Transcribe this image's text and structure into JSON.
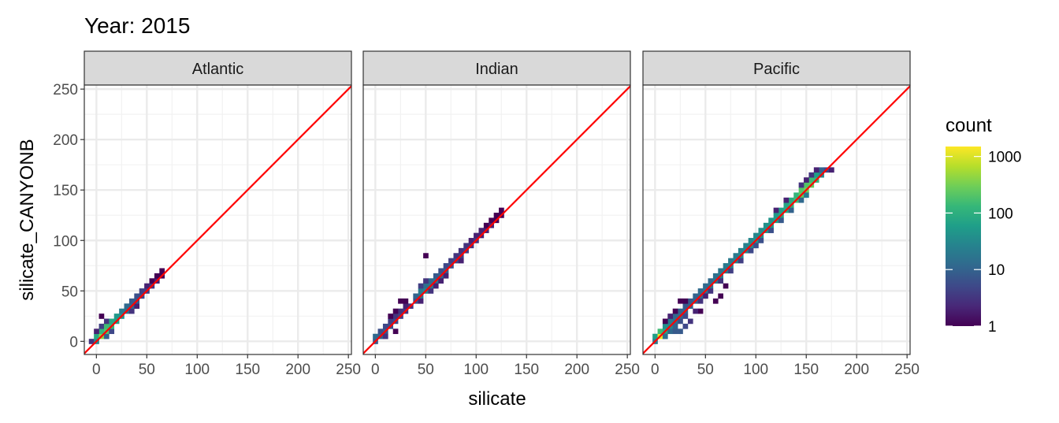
{
  "chart_data": {
    "type": "heatmap",
    "title": "Year: 2015",
    "xlabel": "silicate",
    "ylabel": "silicate_CANYONB",
    "xlim": [
      -12,
      253
    ],
    "ylim": [
      -13,
      254
    ],
    "x_ticks": [
      0,
      50,
      100,
      150,
      200,
      250
    ],
    "y_ticks": [
      0,
      50,
      100,
      150,
      200,
      250
    ],
    "grid": true,
    "bin_width": 5,
    "reference_line": {
      "slope": 1,
      "intercept": 0,
      "color": "#ff0000"
    },
    "legend": {
      "title": "count",
      "placement": "right",
      "scale": "log10",
      "palette": "viridis",
      "range": [
        1,
        1500
      ],
      "ticks": [
        1,
        10,
        100,
        1000
      ],
      "tick_labels": [
        "1",
        "10",
        "100",
        "1000"
      ]
    },
    "facets": [
      {
        "name": "Atlantic",
        "bins": [
          [
            -5,
            0,
            3
          ],
          [
            0,
            0,
            30
          ],
          [
            0,
            5,
            80
          ],
          [
            5,
            5,
            400
          ],
          [
            5,
            10,
            120
          ],
          [
            0,
            10,
            2
          ],
          [
            5,
            15,
            4
          ],
          [
            10,
            5,
            10
          ],
          [
            10,
            10,
            200
          ],
          [
            10,
            15,
            150
          ],
          [
            15,
            10,
            5
          ],
          [
            15,
            15,
            120
          ],
          [
            10,
            20,
            3
          ],
          [
            15,
            20,
            80
          ],
          [
            20,
            20,
            60
          ],
          [
            20,
            25,
            50
          ],
          [
            25,
            25,
            40
          ],
          [
            25,
            30,
            20
          ],
          [
            30,
            30,
            15
          ],
          [
            30,
            35,
            12
          ],
          [
            35,
            30,
            3
          ],
          [
            35,
            35,
            10
          ],
          [
            35,
            40,
            8
          ],
          [
            40,
            35,
            2
          ],
          [
            40,
            40,
            8
          ],
          [
            40,
            45,
            6
          ],
          [
            45,
            45,
            5
          ],
          [
            45,
            50,
            4
          ],
          [
            50,
            50,
            4
          ],
          [
            50,
            55,
            2
          ],
          [
            55,
            55,
            3
          ],
          [
            55,
            60,
            1
          ],
          [
            60,
            60,
            2
          ],
          [
            60,
            65,
            1
          ],
          [
            65,
            65,
            1
          ],
          [
            65,
            70,
            1
          ],
          [
            5,
            25,
            1
          ]
        ]
      },
      {
        "name": "Indian",
        "bins": [
          [
            0,
            0,
            8
          ],
          [
            0,
            5,
            12
          ],
          [
            5,
            5,
            10
          ],
          [
            5,
            10,
            6
          ],
          [
            10,
            10,
            8
          ],
          [
            10,
            15,
            5
          ],
          [
            15,
            15,
            6
          ],
          [
            15,
            20,
            4
          ],
          [
            20,
            20,
            5
          ],
          [
            20,
            25,
            3
          ],
          [
            25,
            25,
            4
          ],
          [
            25,
            30,
            3
          ],
          [
            30,
            30,
            3
          ],
          [
            30,
            35,
            2
          ],
          [
            35,
            35,
            3
          ],
          [
            20,
            30,
            1
          ],
          [
            15,
            25,
            1
          ],
          [
            25,
            40,
            1
          ],
          [
            30,
            40,
            1
          ],
          [
            40,
            40,
            6
          ],
          [
            40,
            45,
            10
          ],
          [
            45,
            45,
            15
          ],
          [
            45,
            50,
            20
          ],
          [
            50,
            50,
            25
          ],
          [
            50,
            55,
            15
          ],
          [
            55,
            55,
            18
          ],
          [
            55,
            60,
            12
          ],
          [
            60,
            60,
            15
          ],
          [
            60,
            65,
            8
          ],
          [
            65,
            65,
            10
          ],
          [
            65,
            70,
            6
          ],
          [
            70,
            70,
            8
          ],
          [
            70,
            75,
            5
          ],
          [
            75,
            75,
            6
          ],
          [
            75,
            80,
            4
          ],
          [
            80,
            80,
            5
          ],
          [
            80,
            85,
            3
          ],
          [
            85,
            85,
            4
          ],
          [
            85,
            90,
            3
          ],
          [
            90,
            90,
            4
          ],
          [
            90,
            95,
            3
          ],
          [
            95,
            95,
            3
          ],
          [
            95,
            100,
            2
          ],
          [
            100,
            100,
            3
          ],
          [
            100,
            105,
            2
          ],
          [
            105,
            105,
            2
          ],
          [
            105,
            110,
            2
          ],
          [
            110,
            110,
            2
          ],
          [
            110,
            115,
            1
          ],
          [
            115,
            115,
            2
          ],
          [
            115,
            120,
            1
          ],
          [
            120,
            120,
            1
          ],
          [
            120,
            125,
            1
          ],
          [
            125,
            125,
            1
          ],
          [
            125,
            130,
            1
          ],
          [
            50,
            60,
            3
          ],
          [
            45,
            55,
            4
          ],
          [
            55,
            50,
            3
          ],
          [
            60,
            55,
            2
          ],
          [
            65,
            60,
            2
          ],
          [
            50,
            85,
            1
          ],
          [
            45,
            40,
            2
          ],
          [
            70,
            65,
            2
          ],
          [
            85,
            80,
            2
          ],
          [
            20,
            10,
            1
          ],
          [
            10,
            5,
            3
          ]
        ]
      },
      {
        "name": "Pacific",
        "bins": [
          [
            0,
            0,
            20
          ],
          [
            0,
            5,
            60
          ],
          [
            5,
            5,
            1200
          ],
          [
            5,
            10,
            150
          ],
          [
            10,
            10,
            80
          ],
          [
            10,
            15,
            40
          ],
          [
            15,
            15,
            30
          ],
          [
            15,
            20,
            20
          ],
          [
            20,
            20,
            15
          ],
          [
            20,
            25,
            12
          ],
          [
            25,
            25,
            12
          ],
          [
            25,
            30,
            10
          ],
          [
            30,
            30,
            10
          ],
          [
            30,
            35,
            8
          ],
          [
            35,
            35,
            10
          ],
          [
            35,
            40,
            8
          ],
          [
            40,
            40,
            10
          ],
          [
            40,
            45,
            10
          ],
          [
            45,
            45,
            12
          ],
          [
            45,
            50,
            12
          ],
          [
            50,
            50,
            15
          ],
          [
            50,
            55,
            12
          ],
          [
            55,
            55,
            15
          ],
          [
            55,
            60,
            12
          ],
          [
            60,
            60,
            18
          ],
          [
            60,
            65,
            15
          ],
          [
            65,
            65,
            20
          ],
          [
            65,
            70,
            18
          ],
          [
            70,
            70,
            20
          ],
          [
            70,
            75,
            20
          ],
          [
            75,
            75,
            25
          ],
          [
            75,
            80,
            20
          ],
          [
            80,
            80,
            25
          ],
          [
            80,
            85,
            20
          ],
          [
            85,
            85,
            30
          ],
          [
            85,
            90,
            25
          ],
          [
            90,
            90,
            30
          ],
          [
            90,
            95,
            25
          ],
          [
            95,
            95,
            35
          ],
          [
            95,
            100,
            30
          ],
          [
            100,
            100,
            40
          ],
          [
            100,
            105,
            30
          ],
          [
            105,
            105,
            40
          ],
          [
            105,
            110,
            35
          ],
          [
            110,
            110,
            45
          ],
          [
            110,
            115,
            40
          ],
          [
            115,
            115,
            50
          ],
          [
            115,
            120,
            45
          ],
          [
            120,
            120,
            60
          ],
          [
            120,
            125,
            50
          ],
          [
            125,
            125,
            70
          ],
          [
            125,
            130,
            60
          ],
          [
            130,
            130,
            80
          ],
          [
            130,
            135,
            70
          ],
          [
            135,
            135,
            100
          ],
          [
            135,
            140,
            90
          ],
          [
            140,
            140,
            150
          ],
          [
            140,
            145,
            120
          ],
          [
            145,
            145,
            250
          ],
          [
            145,
            150,
            200
          ],
          [
            150,
            150,
            300
          ],
          [
            150,
            155,
            200
          ],
          [
            155,
            155,
            250
          ],
          [
            155,
            160,
            150
          ],
          [
            160,
            160,
            120
          ],
          [
            160,
            165,
            60
          ],
          [
            165,
            165,
            30
          ],
          [
            165,
            170,
            10
          ],
          [
            170,
            170,
            5
          ],
          [
            175,
            170,
            2
          ],
          [
            10,
            5,
            15
          ],
          [
            15,
            10,
            12
          ],
          [
            20,
            15,
            10
          ],
          [
            25,
            20,
            6
          ],
          [
            30,
            25,
            5
          ],
          [
            20,
            10,
            8
          ],
          [
            25,
            10,
            8
          ],
          [
            30,
            15,
            5
          ],
          [
            15,
            25,
            2
          ],
          [
            10,
            20,
            1
          ],
          [
            20,
            30,
            1
          ],
          [
            25,
            40,
            1
          ],
          [
            30,
            40,
            1
          ],
          [
            45,
            40,
            3
          ],
          [
            50,
            45,
            2
          ],
          [
            55,
            50,
            3
          ],
          [
            65,
            60,
            3
          ],
          [
            75,
            70,
            4
          ],
          [
            85,
            80,
            4
          ],
          [
            95,
            90,
            5
          ],
          [
            105,
            100,
            6
          ],
          [
            115,
            110,
            6
          ],
          [
            125,
            120,
            8
          ],
          [
            135,
            130,
            10
          ],
          [
            145,
            140,
            12
          ],
          [
            150,
            145,
            20
          ],
          [
            60,
            40,
            1
          ],
          [
            65,
            45,
            1
          ],
          [
            45,
            30,
            1
          ],
          [
            70,
            55,
            1
          ],
          [
            120,
            130,
            2
          ],
          [
            130,
            140,
            2
          ],
          [
            145,
            155,
            3
          ],
          [
            150,
            160,
            2
          ],
          [
            155,
            165,
            3
          ],
          [
            160,
            170,
            2
          ],
          [
            35,
            20,
            3
          ],
          [
            40,
            30,
            2
          ],
          [
            100,
            95,
            6
          ]
        ]
      }
    ]
  }
}
